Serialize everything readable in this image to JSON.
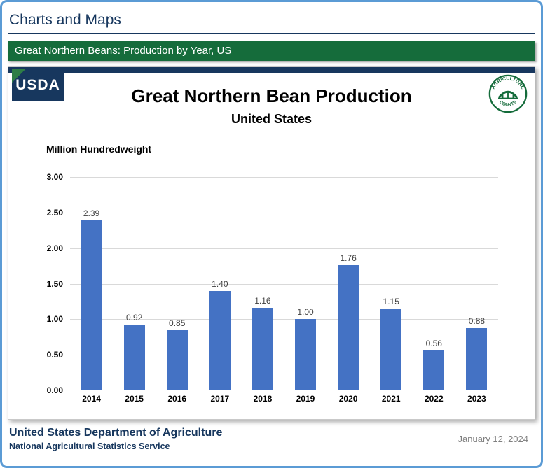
{
  "page": {
    "title": "Charts and Maps",
    "banner": "Great Northern Beans: Production by Year, US"
  },
  "header": {
    "usda_text": "USDA",
    "seal_top": "AGRICULTURE",
    "seal_bottom": "COUNTS"
  },
  "chart_data": {
    "type": "bar",
    "title": "Great Northern Bean Production",
    "subtitle": "United States",
    "ylabel": "Million Hundredweight",
    "categories": [
      "2014",
      "2015",
      "2016",
      "2017",
      "2018",
      "2019",
      "2020",
      "2021",
      "2022",
      "2023"
    ],
    "values": [
      2.39,
      0.92,
      0.85,
      1.4,
      1.16,
      1.0,
      1.76,
      1.15,
      0.56,
      0.88
    ],
    "labels": [
      "2.39",
      "0.92",
      "0.85",
      "1.40",
      "1.16",
      "1.00",
      "1.76",
      "1.15",
      "0.56",
      "0.88"
    ],
    "ylim": [
      0,
      3.0
    ],
    "yticks": [
      "3.00",
      "2.50",
      "2.00",
      "1.50",
      "1.00",
      "0.50",
      "0.00"
    ],
    "grid": true,
    "legend": "none",
    "bar_color": "#4472C4"
  },
  "footer": {
    "org": "United States Department of Agriculture",
    "sub_org": "National Agricultural Statistics Service",
    "date": "January 12, 2024"
  },
  "colors": {
    "accent_navy": "#17375E",
    "banner_green": "#156C3B",
    "frame_blue": "#5B9BD5",
    "bar_blue": "#4472C4"
  }
}
